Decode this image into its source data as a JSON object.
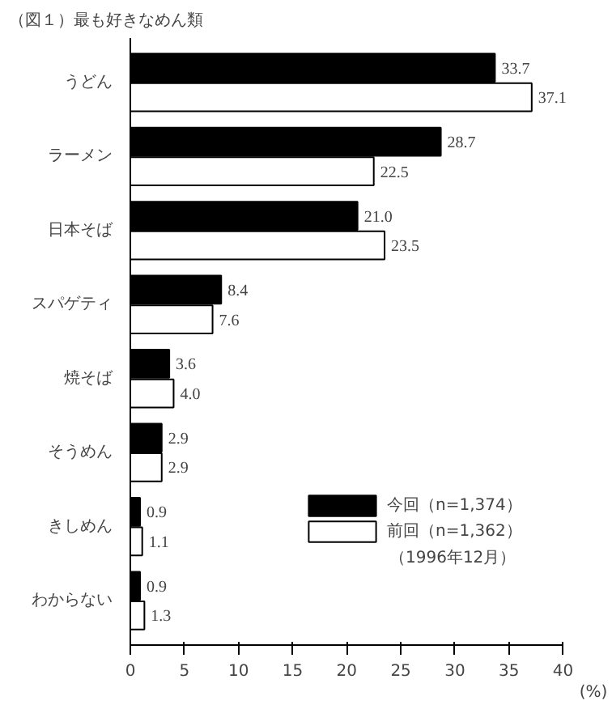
{
  "chart_data": {
    "type": "bar",
    "orientation": "horizontal",
    "title": "（図１）最も好きなめん類",
    "xlabel": "(%)",
    "categories": [
      "うどん",
      "ラーメン",
      "日本そば",
      "スパゲティ",
      "焼そば",
      "そうめん",
      "きしめん",
      "わからない"
    ],
    "series": [
      {
        "name": "今回（n=1,374）",
        "color": "#000000",
        "values": [
          33.7,
          28.7,
          21.0,
          8.4,
          3.6,
          2.9,
          0.9,
          0.9
        ],
        "value_labels": [
          "33.7",
          "28.7",
          "21.0",
          "8.4",
          "3.6",
          "2.9",
          "0.9",
          "0.9"
        ]
      },
      {
        "name": "前回（n=1,362）",
        "color": "#ffffff",
        "values": [
          37.1,
          22.5,
          23.5,
          7.6,
          4.0,
          2.9,
          1.1,
          1.3
        ],
        "value_labels": [
          "37.1",
          "22.5",
          "23.5",
          "7.6",
          "4.0",
          "2.9",
          "1.1",
          "1.3"
        ]
      }
    ],
    "xlim": [
      0,
      40
    ],
    "xticks": [
      0,
      5,
      10,
      15,
      20,
      25,
      30,
      35,
      40
    ],
    "grid": false,
    "legend": "bottom right",
    "annotations": [
      "（1996年12月）"
    ]
  }
}
